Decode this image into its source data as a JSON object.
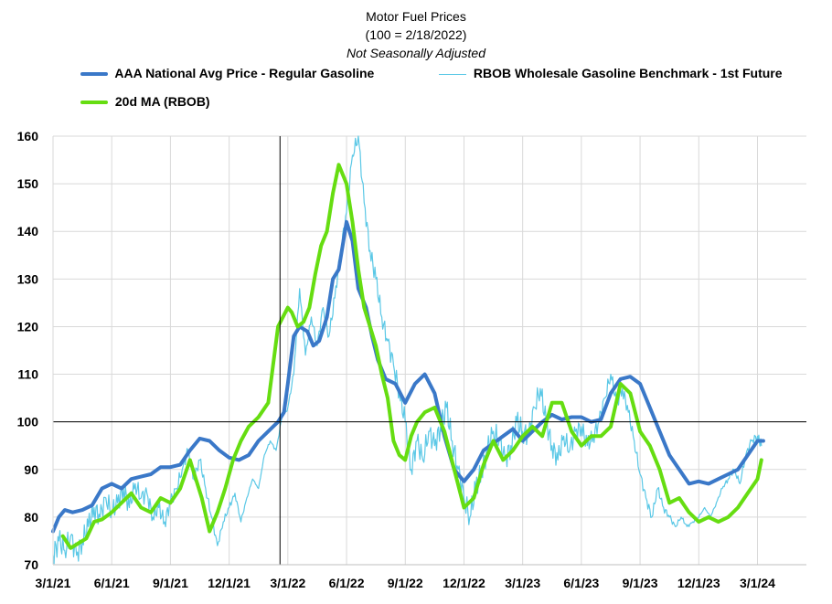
{
  "chart_data": {
    "type": "line",
    "title": "Motor Fuel Prices",
    "subtitle": "(100 = 2/18/2022)",
    "note": "Not Seasonally Adjusted",
    "ylim": [
      70,
      160
    ],
    "yticks": [
      70,
      80,
      90,
      100,
      110,
      120,
      130,
      140,
      150,
      160
    ],
    "x_tick_labels": [
      "3/1/21",
      "6/1/21",
      "9/1/21",
      "12/1/21",
      "3/1/22",
      "6/1/22",
      "9/1/22",
      "12/1/22",
      "3/1/23",
      "6/1/23",
      "9/1/23",
      "12/1/23",
      "3/1/24"
    ],
    "x_tick_month_index": [
      0,
      3,
      6,
      9,
      12,
      15,
      18,
      21,
      24,
      27,
      30,
      33,
      36
    ],
    "x_range_months": [
      0,
      38.5
    ],
    "reference_lines": {
      "y": 100,
      "x_month_index": 11.6
    },
    "series": [
      {
        "name": "AAA National Avg Price - Regular Gasoline",
        "color": "#3a78c8",
        "width": 4,
        "x": [
          0,
          0.3,
          0.6,
          1.0,
          1.5,
          2.0,
          2.5,
          3.0,
          3.5,
          4.0,
          4.5,
          5.0,
          5.5,
          6.0,
          6.5,
          7.0,
          7.5,
          8.0,
          8.5,
          9.0,
          9.5,
          10.0,
          10.5,
          11.0,
          11.5,
          11.8,
          12.0,
          12.3,
          12.6,
          13.0,
          13.3,
          13.6,
          14.0,
          14.3,
          14.6,
          15.0,
          15.3,
          15.6,
          16.0,
          16.3,
          16.6,
          17.0,
          17.5,
          18.0,
          18.5,
          19.0,
          19.5,
          20.0,
          20.5,
          21.0,
          21.5,
          22.0,
          22.5,
          23.0,
          23.5,
          24.0,
          24.5,
          25.0,
          25.5,
          26.0,
          26.5,
          27.0,
          27.5,
          28.0,
          28.5,
          29.0,
          29.5,
          30.0,
          30.5,
          31.0,
          31.5,
          32.0,
          32.5,
          33.0,
          33.5,
          34.0,
          34.5,
          35.0,
          35.5,
          36.0,
          36.3
        ],
        "values": [
          77,
          80,
          81.5,
          81,
          81.5,
          82.5,
          86,
          87,
          86,
          88,
          88.5,
          89,
          90.5,
          90.5,
          91,
          94,
          96.5,
          96,
          94,
          92.5,
          92,
          93,
          96,
          98,
          100,
          102,
          108,
          118,
          120,
          119,
          116,
          117,
          122,
          130,
          132,
          142,
          138,
          128,
          124,
          118,
          113,
          109,
          108,
          104,
          108,
          110,
          106,
          97,
          90,
          87.5,
          90,
          94,
          95.5,
          97,
          98.5,
          96,
          98,
          100,
          101.5,
          100.5,
          101,
          101,
          100,
          100.5,
          106,
          109,
          109.5,
          108,
          103,
          98,
          93,
          90,
          87,
          87.5,
          87,
          88,
          89,
          90,
          93,
          96,
          96
        ]
      },
      {
        "name": "RBOB Wholesale Gasoline Benchmark - 1st Future",
        "color": "#5bc8e6",
        "width": 1.2,
        "x": [
          0,
          0.3,
          0.6,
          0.9,
          1.2,
          1.5,
          1.8,
          2.1,
          2.4,
          2.7,
          3.0,
          3.3,
          3.6,
          3.9,
          4.2,
          4.5,
          4.8,
          5.1,
          5.4,
          5.7,
          6.0,
          6.3,
          6.6,
          6.9,
          7.2,
          7.5,
          7.8,
          8.1,
          8.4,
          8.7,
          9.0,
          9.3,
          9.6,
          9.9,
          10.2,
          10.5,
          10.8,
          11.1,
          11.4,
          11.7,
          12.0,
          12.3,
          12.6,
          12.9,
          13.2,
          13.5,
          13.8,
          14.1,
          14.4,
          14.7,
          15.0,
          15.3,
          15.6,
          15.9,
          16.2,
          16.5,
          16.8,
          17.1,
          17.4,
          17.7,
          18.0,
          18.3,
          18.6,
          18.9,
          19.2,
          19.5,
          19.8,
          20.1,
          20.4,
          20.7,
          21.0,
          21.3,
          21.6,
          21.9,
          22.2,
          22.5,
          22.8,
          23.1,
          23.4,
          23.7,
          24.0,
          24.3,
          24.6,
          24.9,
          25.2,
          25.5,
          25.8,
          26.1,
          26.4,
          26.7,
          27.0,
          27.3,
          27.6,
          27.9,
          28.2,
          28.5,
          28.8,
          29.1,
          29.4,
          29.7,
          30.0,
          30.3,
          30.6,
          30.9,
          31.2,
          31.5,
          31.8,
          32.1,
          32.4,
          32.7,
          33.0,
          33.3,
          33.6,
          33.9,
          34.2,
          34.5,
          34.8,
          35.1,
          35.4,
          35.7,
          36.0,
          36.2
        ],
        "values": [
          72,
          75,
          73,
          76,
          72,
          75,
          78,
          82,
          80,
          84,
          81,
          83,
          86,
          82,
          87,
          84,
          85,
          80,
          82,
          79,
          83,
          86,
          90,
          94,
          88,
          92,
          86,
          80,
          74,
          79,
          82,
          85,
          79,
          84,
          88,
          86,
          93,
          96,
          94,
          101,
          103,
          110,
          128,
          114,
          122,
          116,
          124,
          118,
          126,
          136,
          144,
          156,
          160,
          146,
          136,
          130,
          122,
          117,
          112,
          106,
          100,
          90,
          96,
          92,
          98,
          95,
          99,
          103,
          96,
          90,
          84,
          80,
          86,
          90,
          94,
          98,
          96,
          92,
          95,
          100,
          98,
          97,
          103,
          107,
          100,
          95,
          92,
          97,
          94,
          98,
          99,
          95,
          97,
          100,
          105,
          110,
          104,
          107,
          102,
          96,
          89,
          84,
          80,
          86,
          82,
          80,
          78,
          80,
          78,
          79,
          80,
          82,
          80,
          83,
          86,
          88,
          90,
          87,
          93,
          96,
          97,
          95
        ],
        "noise_amplitude": 2.5
      },
      {
        "name": "20d MA (RBOB)",
        "color": "#66dd11",
        "width": 4,
        "x": [
          0.5,
          0.9,
          1.3,
          1.7,
          2.1,
          2.5,
          3.0,
          3.5,
          4.0,
          4.5,
          5.0,
          5.5,
          6.0,
          6.5,
          7.0,
          7.3,
          7.6,
          8.0,
          8.4,
          8.8,
          9.2,
          9.6,
          10.0,
          10.5,
          11.0,
          11.5,
          12.0,
          12.2,
          12.5,
          12.8,
          13.1,
          13.4,
          13.7,
          14.0,
          14.3,
          14.6,
          15.0,
          15.3,
          15.6,
          15.9,
          16.2,
          16.5,
          16.8,
          17.1,
          17.4,
          17.7,
          18.0,
          18.3,
          18.6,
          19.0,
          19.5,
          20.0,
          20.5,
          21.0,
          21.5,
          22.0,
          22.5,
          23.0,
          23.5,
          24.0,
          24.5,
          25.0,
          25.5,
          26.0,
          26.5,
          27.0,
          27.5,
          28.0,
          28.5,
          29.0,
          29.5,
          30.0,
          30.5,
          31.0,
          31.5,
          32.0,
          32.5,
          33.0,
          33.5,
          34.0,
          34.5,
          35.0,
          35.5,
          36.0,
          36.2
        ],
        "values": [
          76,
          73.5,
          74.5,
          75.5,
          79,
          79.5,
          81,
          83,
          85,
          82,
          81,
          84,
          83,
          86,
          92,
          88,
          84,
          77,
          81,
          86,
          92,
          96,
          99,
          101,
          104,
          120,
          124,
          123,
          120,
          121,
          124,
          131,
          137,
          140,
          148,
          154,
          150,
          142,
          132,
          124,
          120,
          116,
          110,
          105,
          96,
          93,
          92,
          97,
          100,
          102,
          103,
          98,
          90,
          82,
          84,
          91,
          96,
          92,
          94,
          97,
          99,
          97,
          104,
          104,
          98,
          95,
          97,
          97,
          99,
          108,
          106,
          98,
          95,
          90,
          83,
          84,
          81,
          79,
          80,
          79,
          80,
          82,
          85,
          88,
          92
        ]
      }
    ]
  }
}
